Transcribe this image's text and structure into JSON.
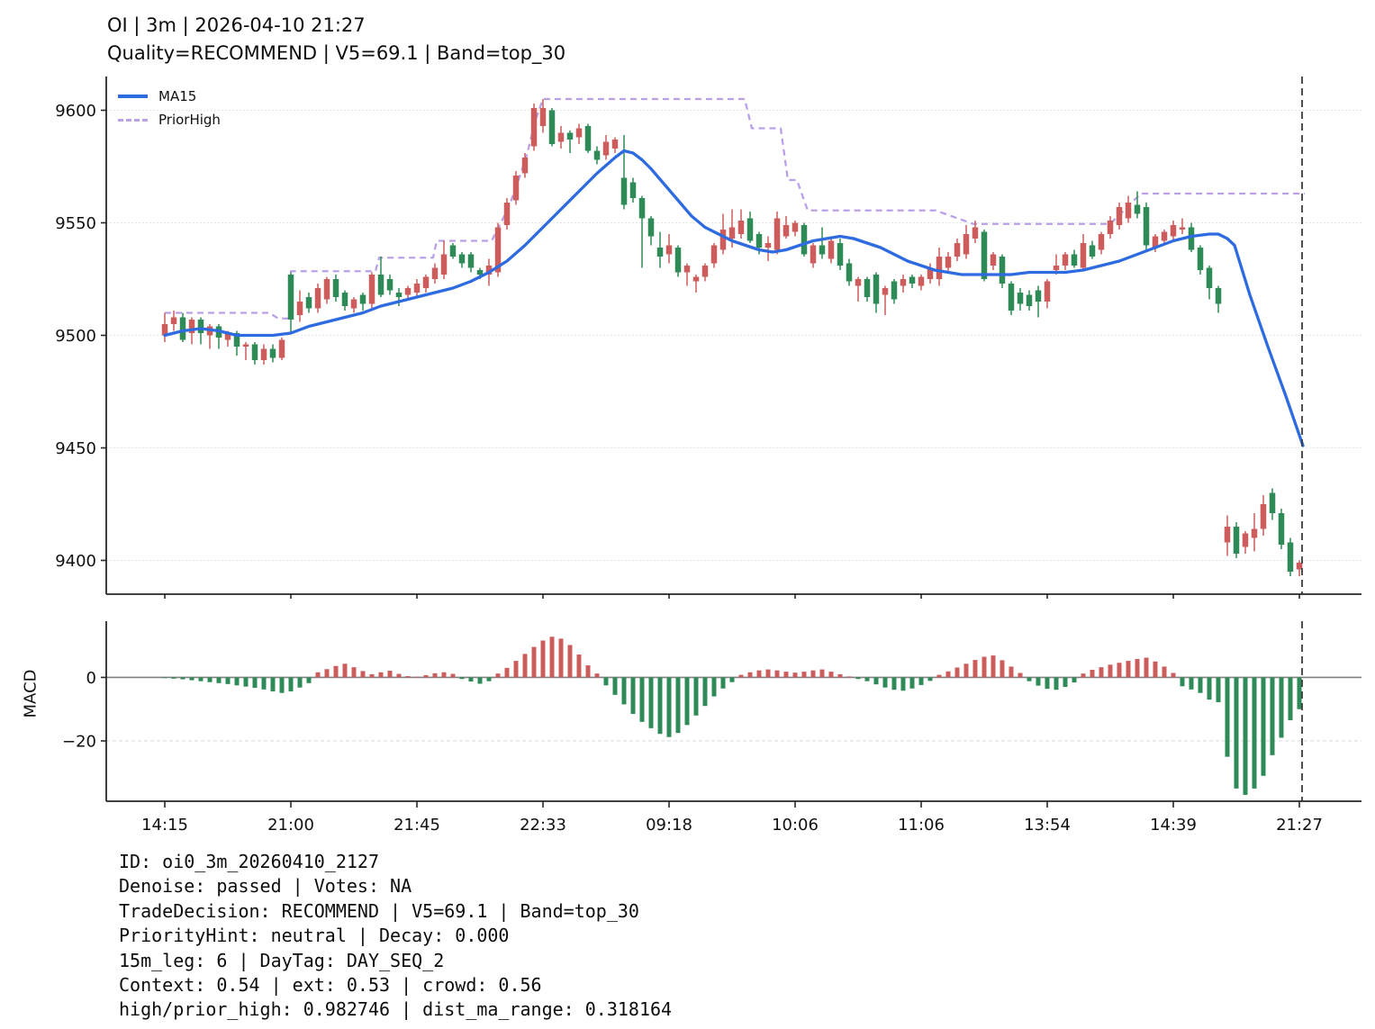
{
  "title": {
    "line1": "OI | 3m | 2026-04-10 21:27",
    "line2": "Quality=RECOMMEND | V5=69.1 | Band=top_30"
  },
  "legend": {
    "items": [
      {
        "label": "MA15",
        "style": "solid"
      },
      {
        "label": "PriorHigh",
        "style": "dashed"
      }
    ]
  },
  "macd_panel": {
    "ylabel": "MACD"
  },
  "footer": {
    "lines": [
      "ID: oi0_3m_20260410_2127",
      "Denoise: passed | Votes: NA",
      "TradeDecision: RECOMMEND | V5=69.1 | Band=top_30",
      "PriorityHint: neutral | Decay: 0.000",
      "15m_leg: 6 | DayTag: DAY_SEQ_2",
      "Context: 0.54 | ext: 0.53 | crowd: 0.56",
      "high/prior_high: 0.982746 | dist_ma_range: 0.318164"
    ]
  },
  "colors": {
    "up": "#cd5c5c",
    "down": "#2e8b57",
    "ma15": "#2e6be0",
    "prior_high": "#b9a0e8",
    "grid": "#dedede",
    "zero_line": "#808080",
    "vline": "#3d3d3d",
    "spine": "#262626",
    "text": "#111111"
  },
  "chart_data": {
    "type": "candlestick",
    "title": "OI | 3m | 2026-04-10 21:27",
    "subtitle": "Quality=RECOMMEND | V5=69.1 | Band=top_30",
    "legend_entries": [
      "MA15",
      "PriorHigh"
    ],
    "x_ticks": [
      {
        "index": 0,
        "label": "14:15"
      },
      {
        "index": 14,
        "label": "21:00"
      },
      {
        "index": 28,
        "label": "21:45"
      },
      {
        "index": 42,
        "label": "22:33"
      },
      {
        "index": 56,
        "label": "09:18"
      },
      {
        "index": 70,
        "label": "10:06"
      },
      {
        "index": 84,
        "label": "11:06"
      },
      {
        "index": 98,
        "label": "13:54"
      },
      {
        "index": 112,
        "label": "14:39"
      },
      {
        "index": 126,
        "label": "21:27"
      }
    ],
    "price_axis": {
      "min": 9385,
      "max": 9615,
      "ticks": [
        9400,
        9450,
        9500,
        9550,
        9600
      ]
    },
    "macd_axis": {
      "min": -39,
      "max": 17.7,
      "ticks": [
        {
          "value": 0,
          "label": "0"
        },
        {
          "value": -20,
          "label": "−20"
        }
      ]
    },
    "vline_index": 126.3,
    "candles": [
      [
        9500,
        9510,
        9497,
        9505
      ],
      [
        9505,
        9511,
        9502,
        9508
      ],
      [
        9508,
        9510,
        9497,
        9498
      ],
      [
        9501,
        9508,
        9496,
        9507
      ],
      [
        9507,
        9508,
        9496,
        9501
      ],
      [
        9500,
        9505,
        9494,
        9504
      ],
      [
        9504,
        9505,
        9494,
        9499
      ],
      [
        9498,
        9502,
        9495,
        9501
      ],
      [
        9501,
        9502,
        9491,
        9495
      ],
      [
        9495,
        9497,
        9489,
        9496
      ],
      [
        9496,
        9497,
        9487,
        9489
      ],
      [
        9489,
        9496,
        9487,
        9494
      ],
      [
        9494,
        9496,
        9488,
        9490
      ],
      [
        9490,
        9499,
        9489,
        9498
      ],
      [
        9527,
        9528,
        9501,
        9507
      ],
      [
        9509,
        9520,
        9506,
        9515
      ],
      [
        9517,
        9519,
        9510,
        9512
      ],
      [
        9512,
        9523,
        9510,
        9521
      ],
      [
        9516,
        9526,
        9514,
        9525
      ],
      [
        9525,
        9527,
        9515,
        9517
      ],
      [
        9519,
        9520,
        9511,
        9513
      ],
      [
        9512,
        9517,
        9510,
        9516
      ],
      [
        9518,
        9519,
        9511,
        9514
      ],
      [
        9514,
        9528,
        9512,
        9527
      ],
      [
        9527,
        9535,
        9517,
        9518
      ],
      [
        9525,
        9527,
        9518,
        9520
      ],
      [
        9519,
        9521,
        9513,
        9517
      ],
      [
        9518,
        9522,
        9516,
        9521
      ],
      [
        9519,
        9525,
        9517,
        9523
      ],
      [
        9521,
        9527,
        9519,
        9526
      ],
      [
        9525,
        9532,
        9523,
        9530
      ],
      [
        9527,
        9542,
        9525,
        9536
      ],
      [
        9540,
        9541,
        9534,
        9535
      ],
      [
        9536,
        9537,
        9530,
        9532
      ],
      [
        9536,
        9537,
        9528,
        9530
      ],
      [
        9529,
        9530,
        9525,
        9527
      ],
      [
        9527,
        9534,
        9522,
        9531
      ],
      [
        9528,
        9550,
        9526,
        9548
      ],
      [
        9549,
        9561,
        9547,
        9559
      ],
      [
        9560,
        9573,
        9558,
        9571
      ],
      [
        9572,
        9581,
        9570,
        9579
      ],
      [
        9584,
        9603,
        9582,
        9601
      ],
      [
        9593,
        9605,
        9590,
        9601
      ],
      [
        9600,
        9601,
        9584,
        9585
      ],
      [
        9586,
        9593,
        9583,
        9590
      ],
      [
        9590,
        9591,
        9581,
        9587
      ],
      [
        9588,
        9594,
        9585,
        9592
      ],
      [
        9593,
        9594,
        9581,
        9582
      ],
      [
        9582,
        9584,
        9576,
        9578
      ],
      [
        9580,
        9589,
        9578,
        9586
      ],
      [
        9583,
        9588,
        9581,
        9587
      ],
      [
        9570,
        9589,
        9556,
        9558
      ],
      [
        9568,
        9570,
        9559,
        9561
      ],
      [
        9561,
        9562,
        9530,
        9552
      ],
      [
        9552,
        9553,
        9540,
        9544
      ],
      [
        9539,
        9546,
        9530,
        9535
      ],
      [
        9536,
        9545,
        9532,
        9540
      ],
      [
        9539,
        9540,
        9526,
        9528
      ],
      [
        9528,
        9532,
        9522,
        9531
      ],
      [
        9524,
        9527,
        9519,
        9526
      ],
      [
        9526,
        9532,
        9524,
        9531
      ],
      [
        9532,
        9541,
        9530,
        9540
      ],
      [
        9538,
        9554,
        9536,
        9547
      ],
      [
        9543,
        9556,
        9539,
        9548
      ],
      [
        9545,
        9556,
        9543,
        9551
      ],
      [
        9552,
        9555,
        9541,
        9542
      ],
      [
        9545,
        9546,
        9536,
        9539
      ],
      [
        9539,
        9544,
        9533,
        9541
      ],
      [
        9538,
        9555,
        9536,
        9552
      ],
      [
        9544,
        9553,
        9543,
        9549
      ],
      [
        9546,
        9551,
        9544,
        9550
      ],
      [
        9549,
        9550,
        9535,
        9536
      ],
      [
        9532,
        9541,
        9530,
        9540
      ],
      [
        9540,
        9548,
        9534,
        9536
      ],
      [
        9534,
        9544,
        9532,
        9542
      ],
      [
        9541,
        9543,
        9529,
        9531
      ],
      [
        9532,
        9534,
        9522,
        9524
      ],
      [
        9522,
        9526,
        9515,
        9525
      ],
      [
        9525,
        9526,
        9515,
        9517
      ],
      [
        9527,
        9528,
        9510,
        9514
      ],
      [
        9518,
        9522,
        9509,
        9521
      ],
      [
        9524,
        9525,
        9514,
        9516
      ],
      [
        9522,
        9527,
        9519,
        9525
      ],
      [
        9526,
        9527,
        9521,
        9523
      ],
      [
        9522,
        9527,
        9520,
        9526
      ],
      [
        9525,
        9532,
        9523,
        9530
      ],
      [
        9525,
        9539,
        9522,
        9535
      ],
      [
        9530,
        9537,
        9528,
        9535
      ],
      [
        9535,
        9543,
        9533,
        9541
      ],
      [
        9536,
        9549,
        9534,
        9545
      ],
      [
        9543,
        9551,
        9541,
        9548
      ],
      [
        9546,
        9547,
        9524,
        9525
      ],
      [
        9531,
        9537,
        9529,
        9536
      ],
      [
        9535,
        9536,
        9521,
        9523
      ],
      [
        9523,
        9524,
        9509,
        9511
      ],
      [
        9519,
        9521,
        9511,
        9514
      ],
      [
        9518,
        9520,
        9511,
        9513
      ],
      [
        9520,
        9522,
        9508,
        9515
      ],
      [
        9515,
        9525,
        9512,
        9524
      ],
      [
        9529,
        9536,
        9527,
        9531
      ],
      [
        9531,
        9537,
        9529,
        9536
      ],
      [
        9536,
        9538,
        9530,
        9531
      ],
      [
        9530,
        9545,
        9529,
        9541
      ],
      [
        9540,
        9542,
        9534,
        9535
      ],
      [
        9538,
        9546,
        9536,
        9545
      ],
      [
        9545,
        9553,
        9543,
        9551
      ],
      [
        9549,
        9559,
        9547,
        9557
      ],
      [
        9552,
        9562,
        9550,
        9559
      ],
      [
        9558,
        9564,
        9552,
        9554
      ],
      [
        9557,
        9559,
        9538,
        9540
      ],
      [
        9539,
        9545,
        9537,
        9544
      ],
      [
        9542,
        9547,
        9540,
        9546
      ],
      [
        9544,
        9551,
        9542,
        9549
      ],
      [
        9547,
        9552,
        9545,
        9548
      ],
      [
        9548,
        9550,
        9537,
        9538
      ],
      [
        9539,
        9540,
        9527,
        9529
      ],
      [
        9530,
        9531,
        9516,
        9521
      ],
      [
        9521,
        9522,
        9510,
        9514
      ],
      [
        9408,
        9420,
        9402,
        9415
      ],
      [
        9415,
        9417,
        9401,
        9403
      ],
      [
        9406,
        9413,
        9403,
        9412
      ],
      [
        9410,
        9421,
        9404,
        9414
      ],
      [
        9414,
        9429,
        9411,
        9425
      ],
      [
        9430,
        9432,
        9418,
        9421
      ],
      [
        9421,
        9423,
        9405,
        9407
      ],
      [
        9408,
        9410,
        9393,
        9395
      ],
      [
        9396,
        9400,
        9393,
        9399
      ]
    ],
    "ma15_points": [
      [
        0,
        9500
      ],
      [
        2,
        9502
      ],
      [
        4,
        9503
      ],
      [
        6,
        9502
      ],
      [
        8,
        9500
      ],
      [
        10,
        9500
      ],
      [
        12,
        9500
      ],
      [
        14,
        9501
      ],
      [
        16,
        9504
      ],
      [
        18,
        9506
      ],
      [
        20,
        9508
      ],
      [
        22,
        9510
      ],
      [
        24,
        9513
      ],
      [
        26,
        9515
      ],
      [
        28,
        9517
      ],
      [
        30,
        9519
      ],
      [
        32,
        9521
      ],
      [
        34,
        9524
      ],
      [
        36,
        9528
      ],
      [
        38,
        9533
      ],
      [
        40,
        9540
      ],
      [
        42,
        9548
      ],
      [
        44,
        9556
      ],
      [
        46,
        9564
      ],
      [
        48,
        9572
      ],
      [
        50,
        9579
      ],
      [
        51,
        9582
      ],
      [
        52,
        9581
      ],
      [
        53,
        9578
      ],
      [
        54,
        9574
      ],
      [
        55.5,
        9567
      ],
      [
        57,
        9560
      ],
      [
        58.5,
        9553
      ],
      [
        60,
        9548
      ],
      [
        61.5,
        9545
      ],
      [
        63,
        9542
      ],
      [
        64.5,
        9540
      ],
      [
        66,
        9538
      ],
      [
        67.5,
        9537
      ],
      [
        69,
        9538
      ],
      [
        70.5,
        9540
      ],
      [
        72,
        9542
      ],
      [
        73.5,
        9543
      ],
      [
        75,
        9544
      ],
      [
        76.5,
        9543
      ],
      [
        78,
        9541
      ],
      [
        79.5,
        9539
      ],
      [
        81,
        9536
      ],
      [
        82.5,
        9533
      ],
      [
        84,
        9531
      ],
      [
        85.5,
        9529
      ],
      [
        87,
        9528
      ],
      [
        88.5,
        9527
      ],
      [
        90,
        9527
      ],
      [
        92,
        9527
      ],
      [
        94,
        9527
      ],
      [
        96,
        9528
      ],
      [
        98,
        9528
      ],
      [
        100,
        9528
      ],
      [
        102,
        9529
      ],
      [
        104,
        9531
      ],
      [
        106,
        9533
      ],
      [
        108,
        9536
      ],
      [
        110,
        9539
      ],
      [
        112,
        9542
      ],
      [
        114,
        9544
      ],
      [
        116,
        9545
      ],
      [
        117,
        9545
      ],
      [
        118,
        9543
      ],
      [
        118.8,
        9540
      ],
      [
        120.5,
        9518
      ],
      [
        122.5,
        9495
      ],
      [
        124.5,
        9473
      ],
      [
        126.4,
        9451
      ]
    ],
    "prior_high_points": [
      [
        0,
        9510
      ],
      [
        11.6,
        9510
      ],
      [
        12.6,
        9507.5
      ],
      [
        13.9,
        9507.5
      ],
      [
        14,
        9528.5
      ],
      [
        23.4,
        9528.5
      ],
      [
        23.8,
        9534.5
      ],
      [
        29.8,
        9534.5
      ],
      [
        30.2,
        9542
      ],
      [
        36.3,
        9542
      ],
      [
        37.2,
        9549
      ],
      [
        38.2,
        9557
      ],
      [
        39.2,
        9568
      ],
      [
        40.2,
        9580
      ],
      [
        41.2,
        9596
      ],
      [
        42,
        9605
      ],
      [
        64.4,
        9605
      ],
      [
        65.2,
        9592
      ],
      [
        68.4,
        9592
      ],
      [
        69.2,
        9569
      ],
      [
        70.2,
        9569
      ],
      [
        71.4,
        9555.5
      ],
      [
        85.6,
        9555.5
      ],
      [
        89.8,
        9549.5
      ],
      [
        105,
        9549.5
      ],
      [
        108.4,
        9563
      ],
      [
        126.6,
        9563
      ]
    ],
    "macd_hist": [
      -0.2,
      -0.4,
      -0.6,
      -0.9,
      -1.2,
      -1.5,
      -1.8,
      -2.1,
      -2.5,
      -2.9,
      -3.3,
      -3.8,
      -4.4,
      -4.9,
      -4.4,
      -3.2,
      -1.8,
      1.6,
      2.6,
      3.6,
      4.3,
      3.2,
      2.0,
      1.0,
      1.6,
      2.1,
      1.1,
      0.4,
      0.2,
      0.7,
      1.3,
      1.6,
      1.1,
      -0.5,
      -1.3,
      -2.0,
      -1.2,
      1.2,
      3.0,
      5.2,
      7.4,
      9.6,
      11.6,
      12.8,
      12.2,
      10.2,
      7.2,
      3.8,
      1.2,
      -2.5,
      -5.5,
      -8.5,
      -11.5,
      -14.0,
      -16.0,
      -17.8,
      -18.8,
      -17.5,
      -15.0,
      -12.0,
      -9.0,
      -6.0,
      -3.5,
      -1.5,
      0.8,
      1.6,
      2.2,
      2.5,
      2.2,
      1.8,
      1.5,
      1.8,
      2.2,
      2.5,
      1.8,
      1.0,
      0.3,
      -0.5,
      -1.2,
      -2.2,
      -3.2,
      -3.9,
      -4.2,
      -3.5,
      -2.4,
      -1.1,
      0.8,
      1.9,
      3.1,
      4.3,
      5.5,
      6.5,
      6.9,
      5.4,
      3.4,
      1.4,
      -1.2,
      -2.6,
      -3.6,
      -3.9,
      -3.0,
      -1.6,
      1.2,
      2.4,
      3.2,
      4.0,
      4.6,
      5.2,
      5.8,
      6.2,
      5.0,
      3.4,
      1.4,
      -2.8,
      -3.8,
      -4.9,
      -7.0,
      -7.8,
      -25.0,
      -35.0,
      -37.0,
      -35.0,
      -31.0,
      -24.5,
      -19.0,
      -13.5,
      -10.0
    ]
  }
}
